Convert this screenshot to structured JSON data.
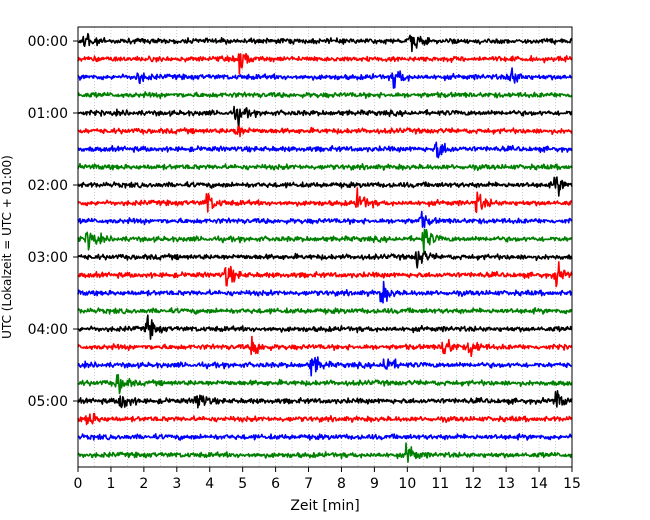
{
  "chart_data": {
    "type": "line",
    "title": "",
    "xlabel": "Zeit  [min]",
    "ylabel": "UTC (Lokalzeit = UTC + 01:00)",
    "xlim": [
      0,
      15
    ],
    "x_ticks": [
      0,
      1,
      2,
      3,
      4,
      5,
      6,
      7,
      8,
      9,
      10,
      11,
      12,
      13,
      14,
      15
    ],
    "y_ticks": [
      "00:00",
      "01:00",
      "02:00",
      "03:00",
      "04:00",
      "05:00"
    ],
    "trace_interval_min": 15,
    "trace_count": 24,
    "color_cycle": [
      "#000000",
      "#ff0000",
      "#0000ff",
      "#008000"
    ],
    "events": [
      {
        "trace": 0,
        "t": 0.2,
        "amp": 0.9
      },
      {
        "trace": 0,
        "t": 10.1,
        "amp": 1.0
      },
      {
        "trace": 1,
        "t": 4.9,
        "amp": 1.0
      },
      {
        "trace": 2,
        "t": 1.8,
        "amp": 0.5
      },
      {
        "trace": 2,
        "t": 9.6,
        "amp": 1.0
      },
      {
        "trace": 2,
        "t": 13.1,
        "amp": 1.0
      },
      {
        "trace": 4,
        "t": 4.8,
        "amp": 1.0
      },
      {
        "trace": 5,
        "t": 4.8,
        "amp": 0.6
      },
      {
        "trace": 6,
        "t": 10.9,
        "amp": 1.0
      },
      {
        "trace": 8,
        "t": 14.5,
        "amp": 0.9
      },
      {
        "trace": 9,
        "t": 3.9,
        "amp": 1.0
      },
      {
        "trace": 9,
        "t": 8.5,
        "amp": 1.0
      },
      {
        "trace": 9,
        "t": 12.1,
        "amp": 0.9
      },
      {
        "trace": 10,
        "t": 10.4,
        "amp": 0.6
      },
      {
        "trace": 11,
        "t": 0.3,
        "amp": 1.0
      },
      {
        "trace": 11,
        "t": 10.5,
        "amp": 1.0
      },
      {
        "trace": 12,
        "t": 10.3,
        "amp": 1.0
      },
      {
        "trace": 13,
        "t": 4.5,
        "amp": 1.0
      },
      {
        "trace": 13,
        "t": 14.5,
        "amp": 1.0
      },
      {
        "trace": 14,
        "t": 9.2,
        "amp": 1.0
      },
      {
        "trace": 16,
        "t": 2.1,
        "amp": 1.0
      },
      {
        "trace": 17,
        "t": 5.3,
        "amp": 1.0
      },
      {
        "trace": 17,
        "t": 11.1,
        "amp": 1.0
      },
      {
        "trace": 17,
        "t": 11.9,
        "amp": 0.8
      },
      {
        "trace": 18,
        "t": 7.1,
        "amp": 1.0
      },
      {
        "trace": 18,
        "t": 9.3,
        "amp": 1.0
      },
      {
        "trace": 19,
        "t": 1.2,
        "amp": 1.0
      },
      {
        "trace": 20,
        "t": 1.3,
        "amp": 1.0
      },
      {
        "trace": 20,
        "t": 3.6,
        "amp": 1.0
      },
      {
        "trace": 20,
        "t": 14.5,
        "amp": 0.7
      },
      {
        "trace": 21,
        "t": 0.3,
        "amp": 0.7
      },
      {
        "trace": 23,
        "t": 10.0,
        "amp": 1.0
      }
    ],
    "grid": {
      "x_minor": true,
      "y": false
    },
    "legend": "none"
  }
}
